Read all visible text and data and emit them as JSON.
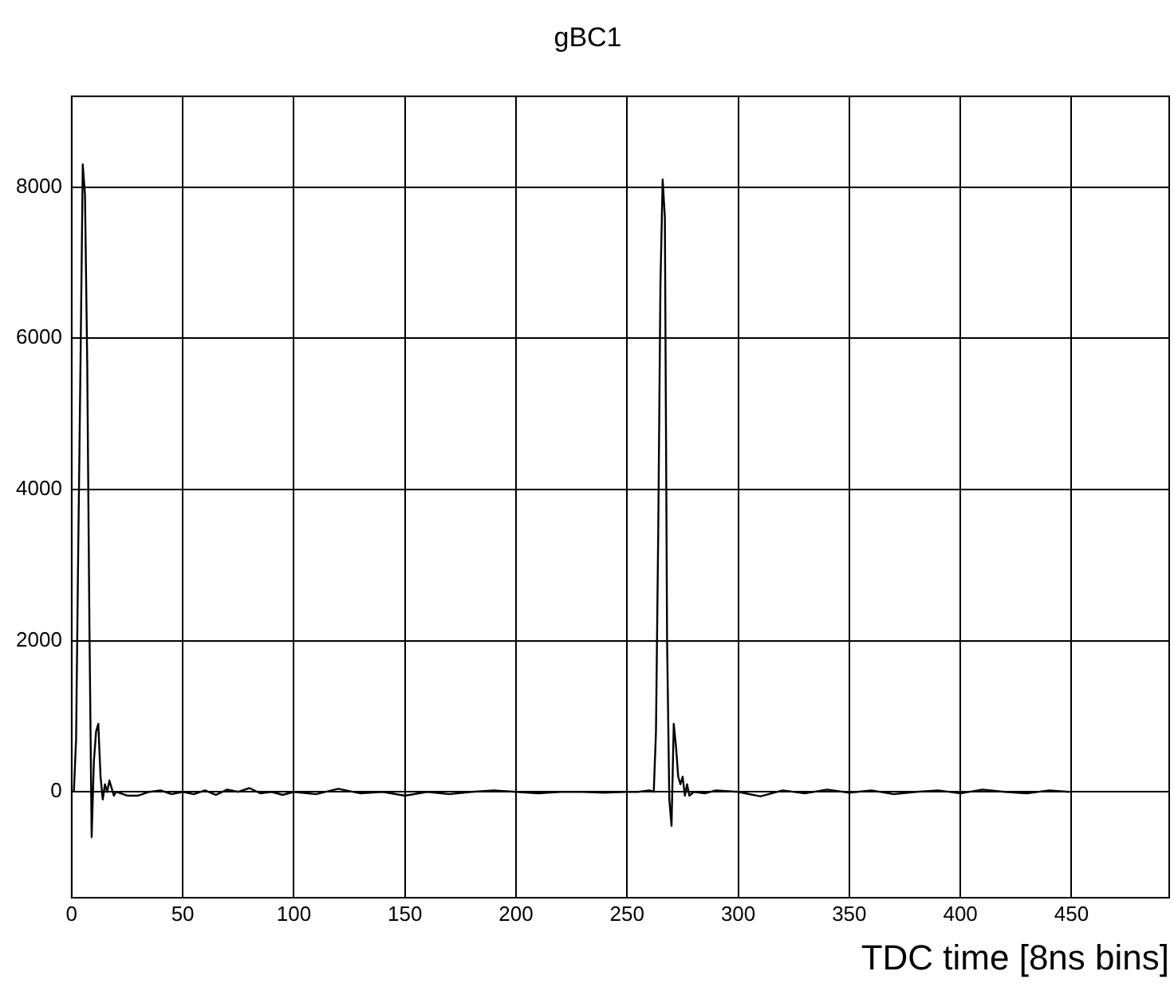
{
  "chart_data": {
    "type": "line",
    "title": "gBC1",
    "xlabel": "TDC time [8ns bins]",
    "xlim": [
      0,
      494
    ],
    "ylim": [
      -1400,
      9200
    ],
    "xticks": [
      0,
      50,
      100,
      150,
      200,
      250,
      300,
      350,
      400,
      450
    ],
    "yticks": [
      0,
      2000,
      4000,
      6000,
      8000
    ],
    "grid": true,
    "legend": false,
    "marker": "none",
    "line_style": "solid",
    "series": [
      {
        "color": "#000000",
        "x": [
          1,
          2,
          3,
          4,
          5,
          6,
          7,
          8,
          9,
          10,
          11,
          12,
          13,
          14,
          15,
          16,
          17,
          18,
          19,
          20,
          25,
          30,
          35,
          40,
          45,
          50,
          55,
          60,
          65,
          70,
          75,
          80,
          85,
          90,
          95,
          100,
          110,
          120,
          130,
          140,
          150,
          160,
          170,
          180,
          190,
          200,
          210,
          220,
          230,
          240,
          250,
          255,
          260,
          262,
          263,
          264,
          265,
          266,
          267,
          268,
          269,
          270,
          271,
          272,
          273,
          274,
          275,
          276,
          277,
          278,
          280,
          285,
          290,
          300,
          310,
          320,
          330,
          340,
          350,
          360,
          370,
          380,
          390,
          400,
          410,
          420,
          430,
          440,
          449
        ],
        "values": [
          0,
          700,
          3300,
          5700,
          8300,
          7900,
          5700,
          2200,
          -600,
          400,
          800,
          900,
          200,
          -100,
          100,
          0,
          150,
          50,
          -50,
          0,
          -50,
          -50,
          0,
          20,
          -30,
          0,
          -30,
          20,
          -40,
          30,
          0,
          50,
          -20,
          0,
          -40,
          0,
          -30,
          40,
          -20,
          0,
          -50,
          0,
          -30,
          0,
          20,
          0,
          -20,
          0,
          0,
          -10,
          0,
          0,
          20,
          0,
          800,
          3400,
          6700,
          8100,
          7600,
          2000,
          -100,
          -450,
          900,
          600,
          200,
          100,
          200,
          -50,
          100,
          -50,
          0,
          -20,
          20,
          0,
          -60,
          20,
          -20,
          30,
          -10,
          20,
          -30,
          0,
          20,
          -20,
          30,
          0,
          -20,
          20,
          0
        ]
      }
    ]
  }
}
